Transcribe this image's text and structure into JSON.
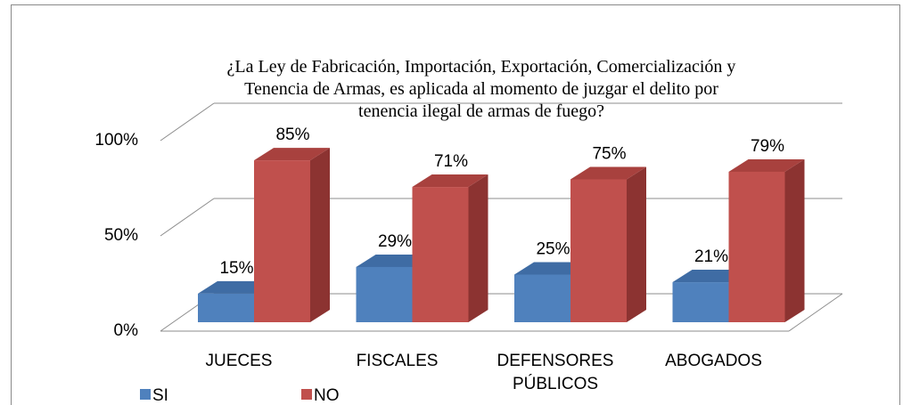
{
  "chart_data": {
    "type": "bar3d",
    "title": "¿La Ley de Fabricación, Importación, Exportación, Comercialización y\nTenencia de Armas, es  aplicada al momento de juzgar el delito por\ntenencia ilegal de armas de fuego?",
    "categories": [
      "JUECES",
      "FISCALES",
      "DEFENSORES\nPÚBLICOS",
      "ABOGADOS"
    ],
    "series": [
      {
        "name": "SI",
        "color": "#4f81bd",
        "values": [
          15,
          29,
          25,
          21
        ],
        "value_labels": [
          "15%",
          "29%",
          "25%",
          "21%"
        ]
      },
      {
        "name": "NO",
        "color": "#c0504d",
        "values": [
          85,
          71,
          75,
          79
        ],
        "value_labels": [
          "85%",
          "71%",
          "75%",
          "79%"
        ]
      }
    ],
    "ylim": [
      0,
      100
    ],
    "yticks": [
      {
        "value": 0,
        "label": "0%"
      },
      {
        "value": 50,
        "label": "50%"
      },
      {
        "value": 100,
        "label": "100%"
      }
    ],
    "grid": true,
    "legend": "bottom-left"
  }
}
